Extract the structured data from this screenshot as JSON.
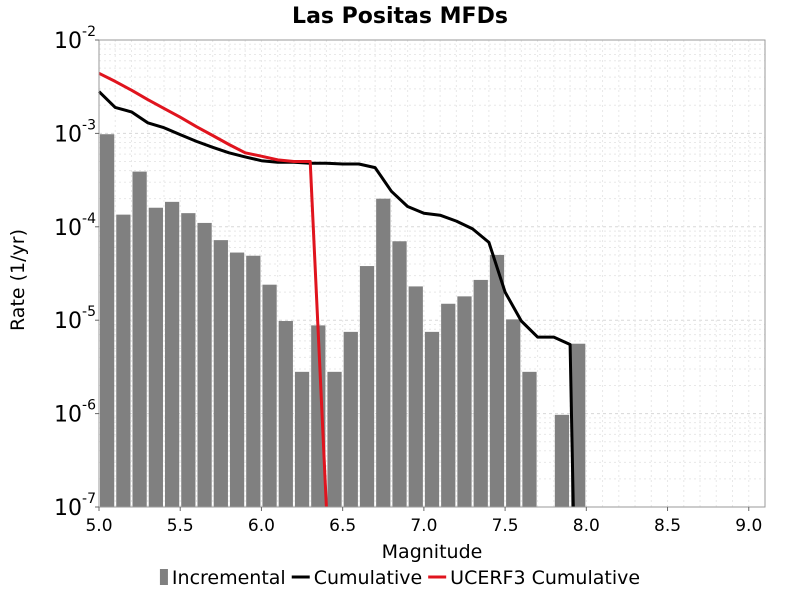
{
  "chart_data": {
    "type": "bar",
    "title": "Las Positas MFDs",
    "xlabel": "Magnitude",
    "ylabel": "Rate (1/yr)",
    "xlim": [
      5.0,
      9.1
    ],
    "ylim": [
      1e-07,
      0.01
    ],
    "yscale": "log",
    "grid": true,
    "legend_position": "bottom",
    "x_ticks": [
      "5.0",
      "5.5",
      "6.0",
      "6.5",
      "7.0",
      "7.5",
      "8.0",
      "8.5",
      "9.0"
    ],
    "y_ticks": [
      {
        "base": "10",
        "exp": "-7"
      },
      {
        "base": "10",
        "exp": "-6"
      },
      {
        "base": "10",
        "exp": "-5"
      },
      {
        "base": "10",
        "exp": "-4"
      },
      {
        "base": "10",
        "exp": "-3"
      },
      {
        "base": "10",
        "exp": "-2"
      }
    ],
    "series": [
      {
        "name": "Incremental",
        "kind": "bar",
        "color": "#808080",
        "x": [
          5.05,
          5.15,
          5.25,
          5.35,
          5.45,
          5.55,
          5.65,
          5.75,
          5.85,
          5.95,
          6.05,
          6.15,
          6.25,
          6.35,
          6.45,
          6.55,
          6.65,
          6.75,
          6.85,
          6.95,
          7.05,
          7.15,
          7.25,
          7.35,
          7.45,
          7.55,
          7.65,
          7.85,
          7.95
        ],
        "values": [
          0.00098,
          0.000135,
          0.00039,
          0.00016,
          0.000185,
          0.00014,
          0.00011,
          7.2e-05,
          5.3e-05,
          4.9e-05,
          2.4e-05,
          9.8e-06,
          2.8e-06,
          8.8e-06,
          2.8e-06,
          7.5e-06,
          3.8e-05,
          0.0002,
          7e-05,
          2.3e-05,
          7.5e-06,
          1.5e-05,
          1.8e-05,
          2.7e-05,
          5e-05,
          1.02e-05,
          2.8e-06,
          9.7e-07,
          5.6e-06
        ]
      },
      {
        "name": "Cumulative",
        "kind": "line",
        "color": "#000000",
        "x": [
          5.0,
          5.1,
          5.2,
          5.3,
          5.4,
          5.5,
          5.6,
          5.7,
          5.8,
          5.9,
          6.0,
          6.1,
          6.2,
          6.3,
          6.4,
          6.5,
          6.6,
          6.7,
          6.8,
          6.9,
          7.0,
          7.1,
          7.2,
          7.3,
          7.4,
          7.5,
          7.6,
          7.7,
          7.8,
          7.9,
          7.92
        ],
        "values": [
          0.0028,
          0.0019,
          0.0017,
          0.0013,
          0.00115,
          0.00097,
          0.00082,
          0.00071,
          0.00062,
          0.00056,
          0.00051,
          0.00049,
          0.00049,
          0.00048,
          0.00048,
          0.00047,
          0.00047,
          0.00043,
          0.00024,
          0.000165,
          0.00014,
          0.000133,
          0.000115,
          9.5e-05,
          6.8e-05,
          2e-05,
          9.8e-06,
          6.6e-06,
          6.6e-06,
          5.5e-06,
          1e-07
        ]
      },
      {
        "name": "UCERF3 Cumulative",
        "kind": "line",
        "color": "#e0141e",
        "x": [
          5.0,
          5.1,
          5.2,
          5.3,
          5.4,
          5.5,
          5.6,
          5.7,
          5.8,
          5.9,
          6.0,
          6.1,
          6.2,
          6.3,
          6.4
        ],
        "values": [
          0.0044,
          0.0036,
          0.0029,
          0.0023,
          0.00185,
          0.00149,
          0.00118,
          0.00095,
          0.00076,
          0.00062,
          0.00057,
          0.00052,
          0.0005,
          0.0005,
          1e-07
        ]
      }
    ]
  }
}
